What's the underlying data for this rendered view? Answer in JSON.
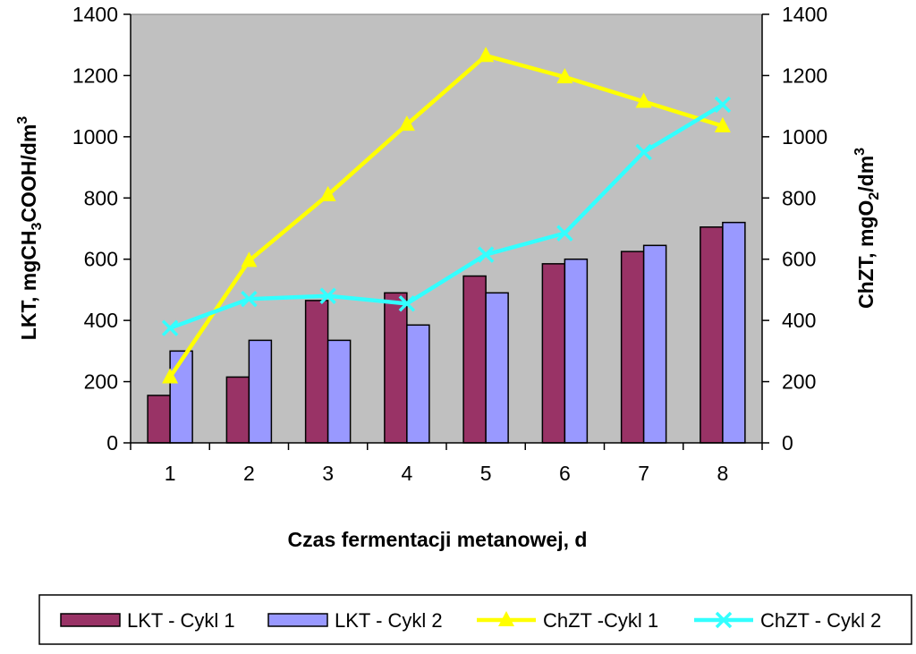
{
  "chart_data": {
    "type": "bar",
    "categories": [
      "1",
      "2",
      "3",
      "4",
      "5",
      "6",
      "7",
      "8"
    ],
    "xlabel": "Czas fermentacji metanowej, d",
    "ylabel_left": {
      "main": "LKT, mgCH",
      "sub1": "3",
      "mid": "COOH/dm",
      "sup": "3"
    },
    "ylabel_right": {
      "main": "ChZT, mgO",
      "sub": "2",
      "mid": "/dm",
      "sup": "3"
    },
    "ylim": [
      0,
      1400
    ],
    "yticks": [
      0,
      200,
      400,
      600,
      800,
      1000,
      1200,
      1400
    ],
    "series": [
      {
        "name": "LKT - Cykl 1",
        "kind": "bar",
        "axis": "left",
        "color": "#993366",
        "values": [
          155,
          215,
          465,
          490,
          545,
          585,
          625,
          705
        ]
      },
      {
        "name": "LKT - Cykl 2",
        "kind": "bar",
        "axis": "left",
        "color": "#9999ff",
        "values": [
          300,
          335,
          335,
          385,
          490,
          600,
          645,
          720
        ]
      },
      {
        "name": "ChZT -Cykl 1",
        "kind": "line",
        "axis": "right",
        "color": "#ffff00",
        "marker": "triangle",
        "values": [
          215,
          595,
          810,
          1040,
          1265,
          1195,
          1115,
          1035
        ]
      },
      {
        "name": "ChZT - Cykl 2",
        "kind": "line",
        "axis": "right",
        "color": "#33ffff",
        "marker": "x",
        "values": [
          375,
          470,
          480,
          455,
          615,
          685,
          950,
          1105
        ]
      }
    ],
    "plot_background": "#c0c0c0",
    "legend_position": "bottom"
  }
}
